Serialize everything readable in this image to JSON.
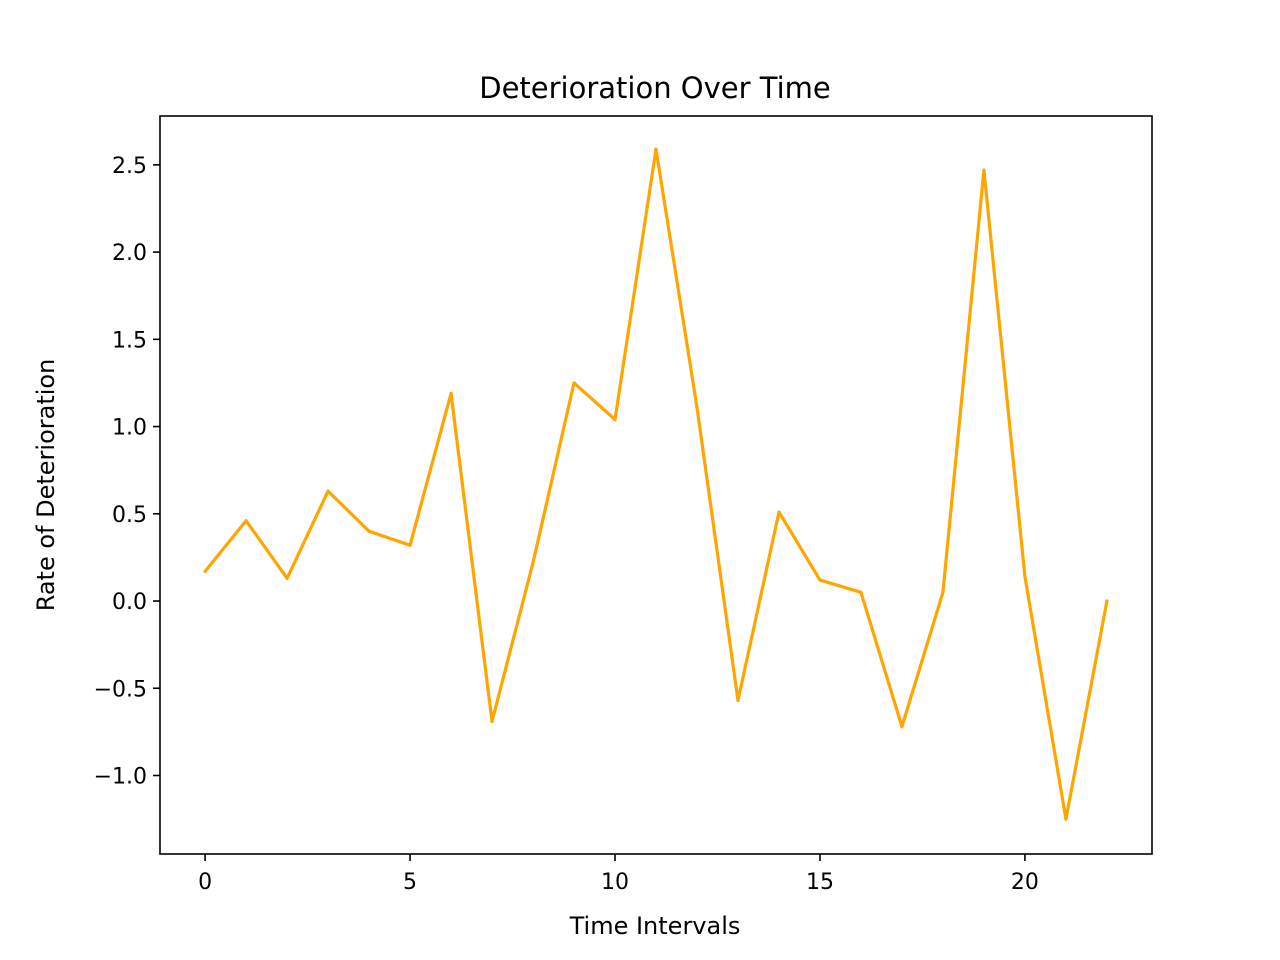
{
  "chart_data": {
    "type": "line",
    "title": "Deterioration Over Time",
    "xlabel": "Time Intervals",
    "ylabel": "Rate of Deterioration",
    "xlim": [
      -1.1,
      23.1
    ],
    "ylim": [
      -1.45,
      2.78
    ],
    "xticks": [
      0,
      5,
      10,
      15,
      20
    ],
    "xtick_labels": [
      "0",
      "5",
      "10",
      "15",
      "20"
    ],
    "yticks": [
      -1.0,
      -0.5,
      0.0,
      0.5,
      1.0,
      1.5,
      2.0,
      2.5
    ],
    "ytick_labels": [
      "−1.0",
      "−0.5",
      "0.0",
      "0.5",
      "1.0",
      "1.5",
      "2.0",
      "2.5"
    ],
    "grid": false,
    "legend": false,
    "series": [
      {
        "color": "#ffa500",
        "x": [
          0,
          1,
          2,
          3,
          4,
          5,
          6,
          7,
          8,
          9,
          10,
          11,
          12,
          13,
          14,
          15,
          16,
          17,
          18,
          19,
          20,
          21,
          22
        ],
        "values": [
          0.17,
          0.46,
          0.13,
          0.63,
          0.4,
          0.32,
          1.19,
          -0.69,
          0.22,
          1.25,
          1.04,
          2.59,
          1.11,
          -0.57,
          0.51,
          0.12,
          0.05,
          -0.72,
          0.05,
          2.47,
          0.14,
          -1.25,
          0.0
        ]
      }
    ]
  }
}
